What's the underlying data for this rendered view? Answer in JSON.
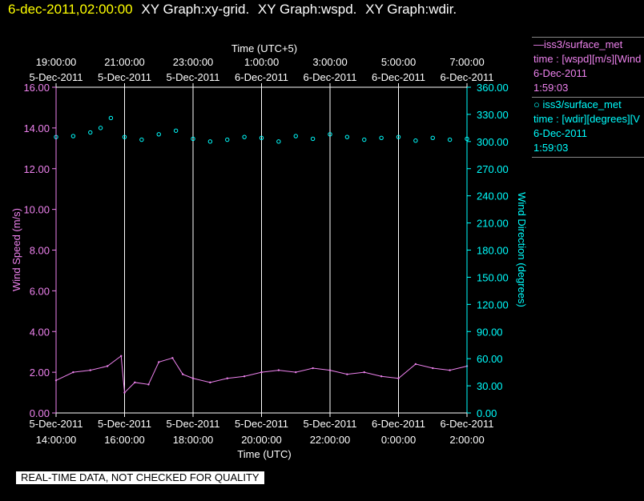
{
  "header": {
    "timestamp": "6-dec-2011,02:00:00",
    "titles": [
      "XY Graph:xy-grid.",
      "XY Graph:wspd.",
      "XY Graph:wdir."
    ]
  },
  "legend": {
    "wspd": {
      "title": "iss3/surface_met",
      "line2": "time : [wspd][m/s][Wind",
      "line3": "6-Dec-2011",
      "line4": "1:59:03",
      "color": "#ee82ee"
    },
    "wdir": {
      "title": "iss3/surface_met",
      "line2": "time : [wdir][degrees][V",
      "line3": "6-Dec-2011",
      "line4": "1:59:03",
      "color": "#00ffff"
    }
  },
  "disclaimer": "REAL-TIME DATA, NOT CHECKED FOR QUALITY",
  "chart_data": {
    "type": "line",
    "top_axis": {
      "title": "Time (UTC+5)",
      "ticks": [
        {
          "time": "19:00:00",
          "date": "5-Dec-2011"
        },
        {
          "time": "21:00:00",
          "date": "5-Dec-2011"
        },
        {
          "time": "23:00:00",
          "date": "5-Dec-2011"
        },
        {
          "time": "1:00:00",
          "date": "6-Dec-2011"
        },
        {
          "time": "3:00:00",
          "date": "6-Dec-2011"
        },
        {
          "time": "5:00:00",
          "date": "6-Dec-2011"
        },
        {
          "time": "7:00:00",
          "date": "6-Dec-2011"
        }
      ]
    },
    "bottom_axis": {
      "title": "Time (UTC)",
      "ticks": [
        {
          "date": "5-Dec-2011",
          "time": "14:00:00"
        },
        {
          "date": "5-Dec-2011",
          "time": "16:00:00"
        },
        {
          "date": "5-Dec-2011",
          "time": "18:00:00"
        },
        {
          "date": "5-Dec-2011",
          "time": "20:00:00"
        },
        {
          "date": "5-Dec-2011",
          "time": "22:00:00"
        },
        {
          "date": "6-Dec-2011",
          "time": "0:00:00"
        },
        {
          "date": "6-Dec-2011",
          "time": "2:00:00"
        }
      ],
      "range_hours_utc": [
        14,
        26
      ]
    },
    "left_axis": {
      "title": "Wind Speed (m/s)",
      "ylim": [
        0,
        16
      ],
      "ticks": [
        "0.00",
        "2.00",
        "4.00",
        "6.00",
        "8.00",
        "10.00",
        "12.00",
        "14.00",
        "16.00"
      ]
    },
    "right_axis": {
      "title": "Wind Direction (degrees)",
      "ylim": [
        0,
        360
      ],
      "ticks": [
        "0.00",
        "30.00",
        "60.00",
        "90.00",
        "120.00",
        "150.00",
        "180.00",
        "210.00",
        "240.00",
        "270.00",
        "300.00",
        "330.00",
        "360.00"
      ]
    },
    "grid": "vertical lines at each time tick",
    "series": [
      {
        "name": "wspd",
        "axis": "left",
        "style": "line",
        "color": "#ee82ee",
        "x_hours_utc": [
          14.0,
          14.5,
          15.0,
          15.5,
          15.9,
          16.0,
          16.3,
          16.7,
          17.0,
          17.4,
          17.7,
          18.0,
          18.5,
          19.0,
          19.5,
          20.0,
          20.5,
          21.0,
          21.5,
          22.0,
          22.5,
          23.0,
          23.5,
          24.0,
          24.5,
          25.0,
          25.5,
          26.0
        ],
        "y": [
          1.6,
          2.0,
          2.1,
          2.3,
          2.8,
          1.0,
          1.5,
          1.4,
          2.5,
          2.7,
          1.9,
          1.7,
          1.5,
          1.7,
          1.8,
          2.0,
          2.1,
          2.0,
          2.2,
          2.1,
          1.9,
          2.0,
          1.8,
          1.7,
          2.4,
          2.2,
          2.1,
          2.3
        ]
      },
      {
        "name": "wdir",
        "axis": "right",
        "style": "scatter",
        "color": "#00ffff",
        "x_hours_utc": [
          14.0,
          14.5,
          15.0,
          15.3,
          15.6,
          16.0,
          16.5,
          17.0,
          17.5,
          18.0,
          18.5,
          19.0,
          19.5,
          20.0,
          20.5,
          21.0,
          21.5,
          22.0,
          22.5,
          23.0,
          23.5,
          24.0,
          24.5,
          25.0,
          25.5,
          26.0
        ],
        "y": [
          305,
          306,
          310,
          315,
          326,
          305,
          302,
          308,
          312,
          303,
          300,
          302,
          305,
          304,
          300,
          306,
          303,
          308,
          305,
          302,
          304,
          305,
          301,
          304,
          302,
          303
        ]
      }
    ]
  }
}
